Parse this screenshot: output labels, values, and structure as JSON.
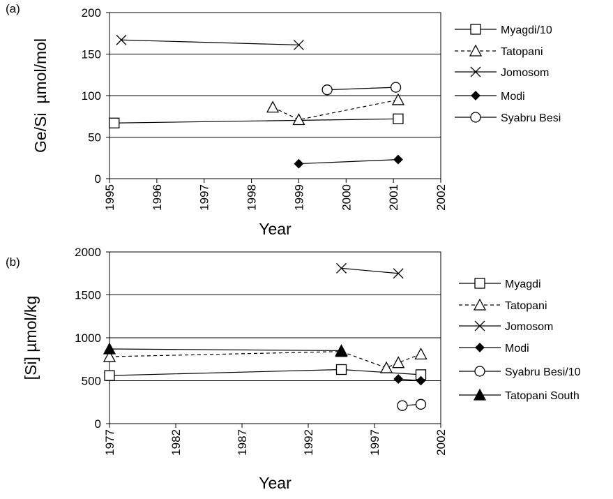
{
  "chart_data": [
    {
      "type": "line",
      "panel_label": "(a)",
      "x_label": "Year",
      "y_label": "Ge/Si  µmol/mol",
      "xlim": [
        1995,
        2002
      ],
      "xticks": [
        1995,
        1996,
        1997,
        1998,
        1999,
        2000,
        2001,
        2002
      ],
      "ylim": [
        0,
        200
      ],
      "yticks": [
        0,
        50,
        100,
        150,
        200
      ],
      "grid": true,
      "series": [
        {
          "name": "Myagdi/10",
          "color": "#000000",
          "marker": "square",
          "dashed": false,
          "x": [
            1995.1,
            2001.1
          ],
          "values": [
            67,
            72
          ]
        },
        {
          "name": "Tatopani",
          "color": "#000000",
          "marker": "triangle",
          "dashed": true,
          "x": [
            1998.45,
            1999.0,
            2001.1
          ],
          "values": [
            86,
            71,
            95
          ]
        },
        {
          "name": "Jomosom",
          "color": "#000000",
          "marker": "cross",
          "dashed": false,
          "x": [
            1995.25,
            1999.0
          ],
          "values": [
            167,
            161
          ]
        },
        {
          "name": "Modi",
          "color": "#000000",
          "marker": "diamond",
          "dashed": false,
          "x": [
            1999.0,
            2001.1
          ],
          "values": [
            18,
            23
          ]
        },
        {
          "name": "Syabru Besi",
          "color": "#000000",
          "marker": "circle",
          "dashed": false,
          "x": [
            1999.6,
            2001.05
          ],
          "values": [
            107,
            110
          ]
        }
      ]
    },
    {
      "type": "line",
      "panel_label": "(b)",
      "x_label": "Year",
      "y_label": "[Si] µmol/kg",
      "xlim": [
        1977,
        2002
      ],
      "xticks": [
        1977,
        1982,
        1987,
        1992,
        1997,
        2002
      ],
      "ylim": [
        0,
        2000
      ],
      "yticks": [
        0,
        500,
        1000,
        1500,
        2000
      ],
      "grid": true,
      "series": [
        {
          "name": "Myagdi",
          "color": "#000000",
          "marker": "square",
          "dashed": false,
          "x": [
            1977,
            1994.5,
            2000.5
          ],
          "values": [
            560,
            630,
            570
          ]
        },
        {
          "name": "Tatopani",
          "color": "#000000",
          "marker": "triangle",
          "dashed": true,
          "x": [
            1977,
            1994.5,
            1997.9,
            1998.8,
            2000.5
          ],
          "values": [
            780,
            840,
            650,
            710,
            810
          ]
        },
        {
          "name": "Jomosom",
          "color": "#000000",
          "marker": "cross",
          "dashed": false,
          "x": [
            1994.5,
            1998.8
          ],
          "values": [
            1810,
            1750
          ]
        },
        {
          "name": "Modi",
          "color": "#000000",
          "marker": "diamond",
          "dashed": false,
          "x": [
            1998.8,
            2000.5
          ],
          "values": [
            520,
            500
          ]
        },
        {
          "name": "Syabru Besi/10",
          "color": "#000000",
          "marker": "circle",
          "dashed": false,
          "x": [
            1999.1,
            2000.5
          ],
          "values": [
            210,
            225
          ]
        },
        {
          "name": "Tatopani South",
          "color": "#000000",
          "marker": "filled-triangle",
          "dashed": false,
          "x": [
            1977,
            1994.5
          ],
          "values": [
            870,
            850
          ]
        }
      ]
    }
  ]
}
